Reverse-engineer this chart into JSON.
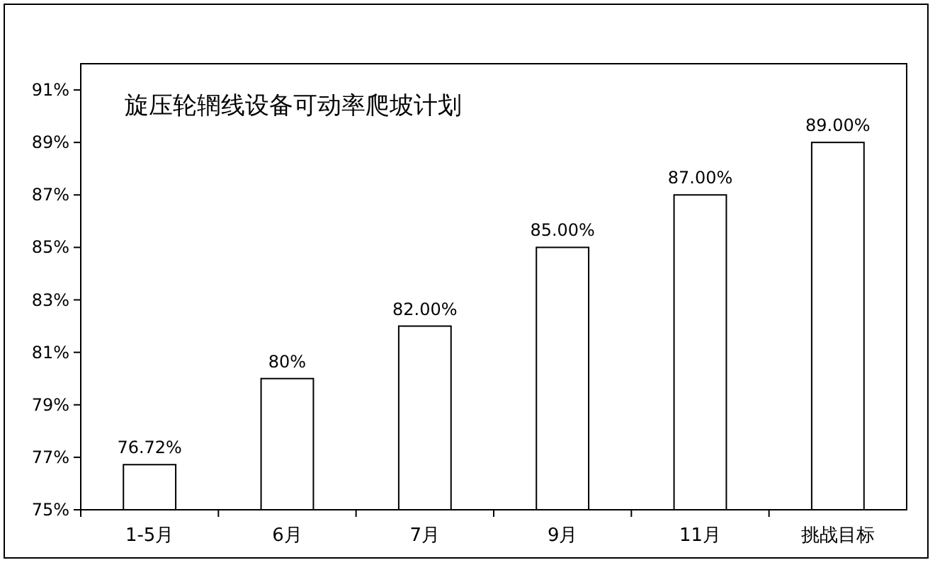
{
  "chart_data": {
    "type": "bar",
    "title": "旋压轮辋线设备可动率爬坡计划",
    "categories": [
      "1-5月",
      "6月",
      "7月",
      "9月",
      "11月",
      "挑战目标"
    ],
    "series": [
      {
        "color": "#ffffff",
        "values": [
          76.72,
          80,
          82,
          85,
          87,
          89
        ]
      }
    ],
    "value_labels": [
      "76.72%",
      "80%",
      "82.00%",
      "85.00%",
      "87.00%",
      "89.00%"
    ],
    "ylim": [
      75,
      92
    ],
    "yticks": [
      {
        "value": 75,
        "label": "75%"
      },
      {
        "value": 77,
        "label": "77%"
      },
      {
        "value": 79,
        "label": "79%"
      },
      {
        "value": 81,
        "label": "81%"
      },
      {
        "value": 83,
        "label": "83%"
      },
      {
        "value": 85,
        "label": "85%"
      },
      {
        "value": 87,
        "label": "87%"
      },
      {
        "value": 89,
        "label": "89%"
      },
      {
        "value": 91,
        "label": "91%"
      }
    ],
    "grid": false
  }
}
